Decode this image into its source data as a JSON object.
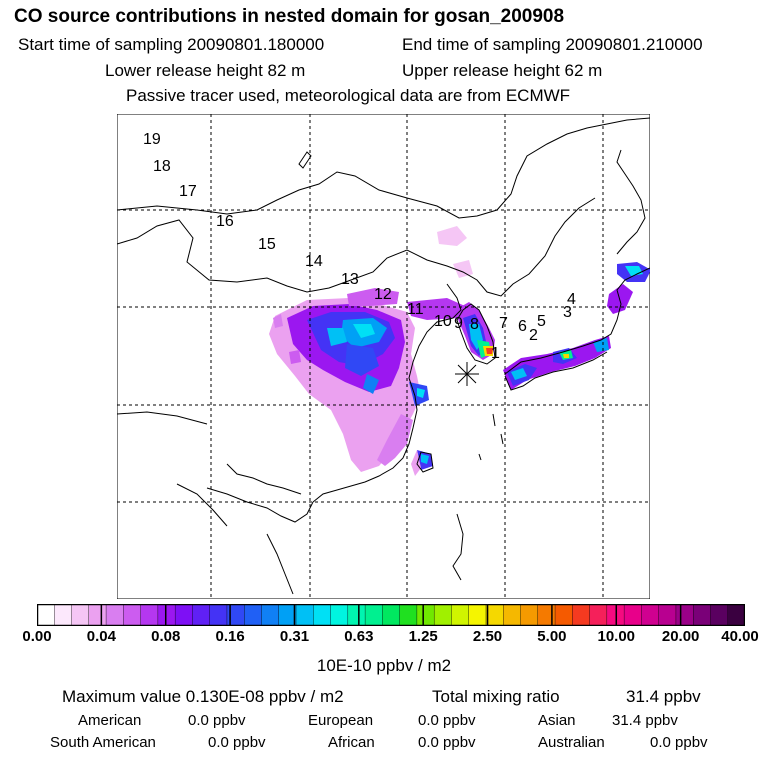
{
  "header": {
    "title": "CO  source contributions in nested domain for gosan_200908",
    "start_label": "Start time of sampling 20090801.180000",
    "end_label": "End time of sampling 20090801.210000",
    "lower_label": "Lower release height   82 m",
    "upper_label": "Upper release height   62 m",
    "note": "Passive tracer used, meteorological data are from ECMWF"
  },
  "map": {
    "trajectory_labels": [
      "19",
      "18",
      "17",
      "16",
      "15",
      "14",
      "13",
      "12",
      "11",
      "10",
      "9",
      "8",
      "7",
      "6",
      "5",
      "4",
      "3",
      "2",
      "1"
    ],
    "receptor_marker": "asterisk-station-icon"
  },
  "colorbar": {
    "ticks": [
      "0.00",
      "0.04",
      "0.08",
      "0.16",
      "0.31",
      "0.63",
      "1.25",
      "2.50",
      "5.00",
      "10.00",
      "20.00",
      "40.00"
    ],
    "unit": "10E-10 ppbv / m2",
    "colors": [
      "#ffffff",
      "#fce8fc",
      "#f5c6f5",
      "#eba1f0",
      "#d97ef0",
      "#cc5cf0",
      "#b537f0",
      "#9b17f0",
      "#7e10f5",
      "#6020f5",
      "#4433f5",
      "#3048f5",
      "#2060f5",
      "#1080f5",
      "#00a0f5",
      "#00c0f5",
      "#00e0f5",
      "#00f5e0",
      "#00f5b0",
      "#00f090",
      "#00e860",
      "#20e020",
      "#70e800",
      "#a0f000",
      "#d0f500",
      "#f5f500",
      "#f5d800",
      "#f5b800",
      "#f59a00",
      "#f57a00",
      "#f55a00",
      "#f53a20",
      "#f5205a",
      "#f50a80",
      "#e8008a",
      "#d00090",
      "#b80090",
      "#9a0088",
      "#7a0078",
      "#5a0060",
      "#3a0040"
    ]
  },
  "stats": {
    "max_label": "Maximum value  0.130E-08 ppbv / m2",
    "total_label": "Total mixing ratio",
    "total_value": "31.4 ppbv",
    "regions": [
      {
        "name": "American",
        "value": "0.0 ppbv"
      },
      {
        "name": "European",
        "value": "0.0 ppbv"
      },
      {
        "name": "Asian",
        "value": "31.4 ppbv"
      },
      {
        "name": "South American",
        "value": "0.0 ppbv"
      },
      {
        "name": "African",
        "value": "0.0 ppbv"
      },
      {
        "name": "Australian",
        "value": "0.0 ppbv"
      }
    ]
  }
}
